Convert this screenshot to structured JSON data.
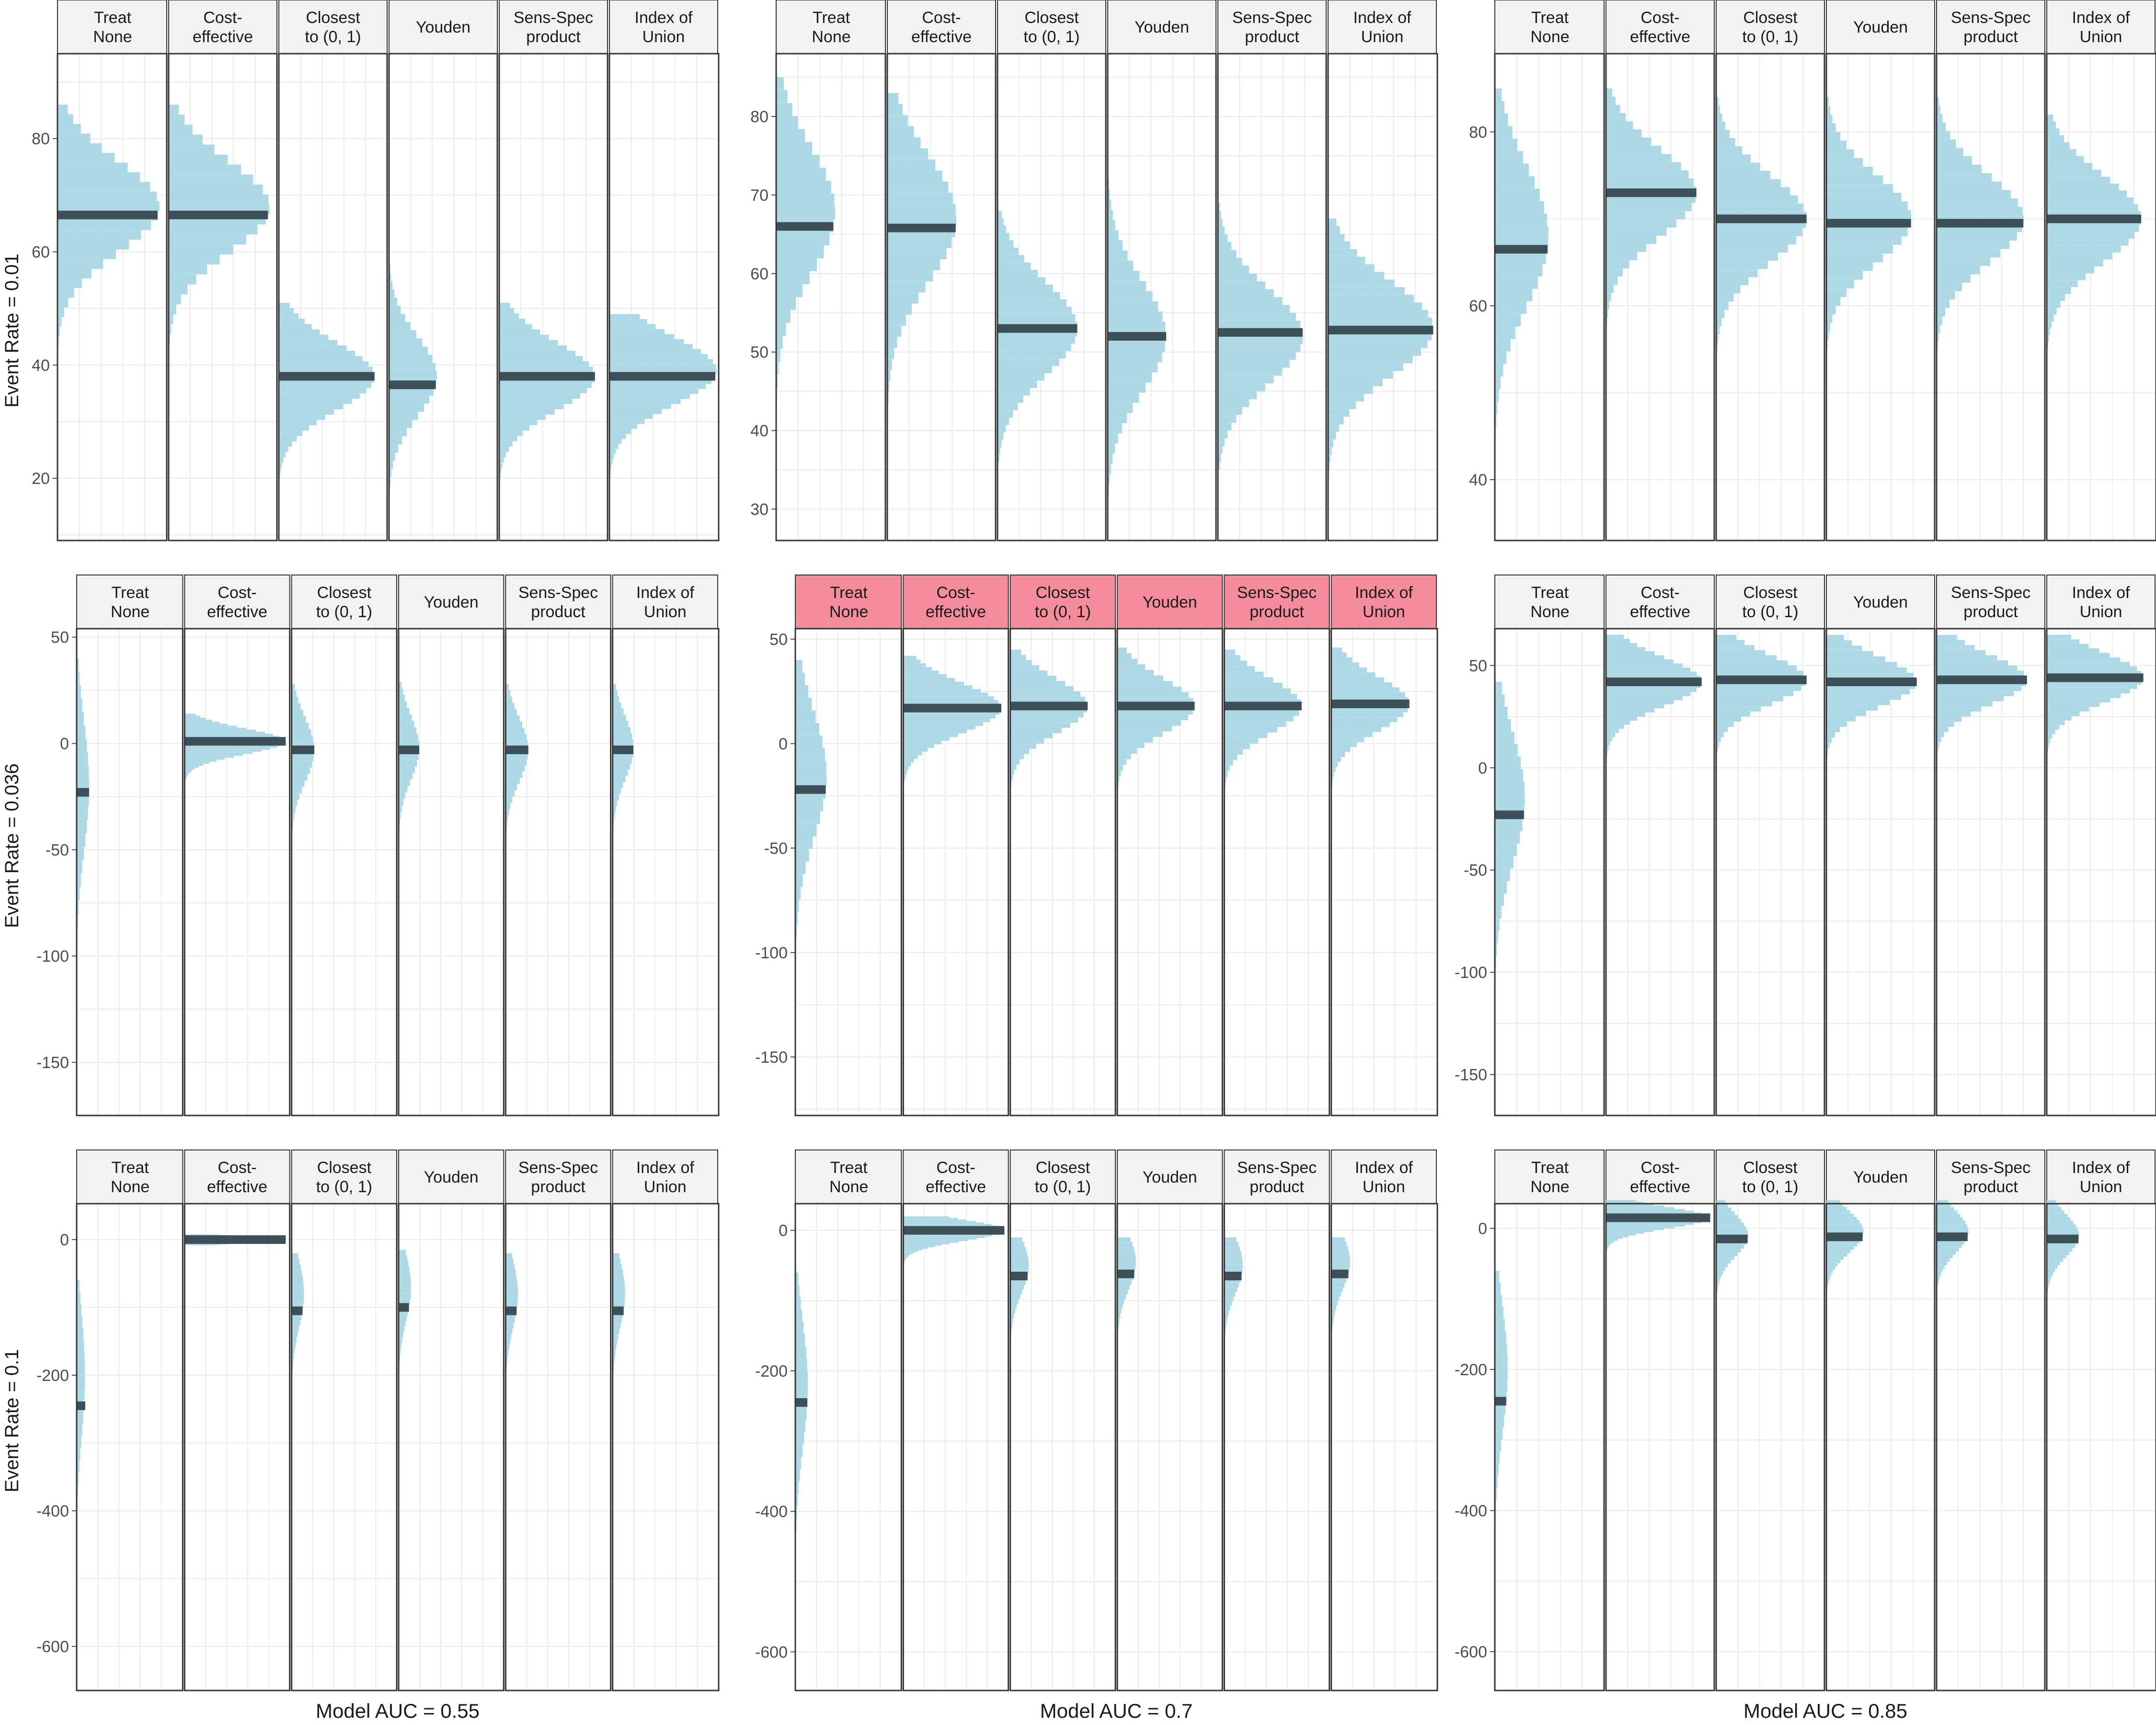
{
  "figure": {
    "strategies": [
      "Treat None",
      "Cost-effective",
      "Closest to (0, 1)",
      "Youden",
      "Sens-Spec product",
      "Index of Union"
    ],
    "strategy_lines": [
      [
        "Treat",
        "None"
      ],
      [
        "Cost-",
        "effective"
      ],
      [
        "Closest",
        "to (0, 1)"
      ],
      [
        "Youden"
      ],
      [
        "Sens-Spec",
        "product"
      ],
      [
        "Index of",
        "Union"
      ]
    ],
    "row_labels": [
      "Event Rate = 0.01",
      "Event Rate = 0.036",
      "Event Rate = 0.1"
    ],
    "col_labels": [
      "Model AUC = 0.55",
      "Model AUC = 0.7",
      "Model AUC = 0.85"
    ],
    "highlighted_panel": {
      "row": 1,
      "col": 1
    },
    "colors": {
      "histogram_fill": "#add8e6",
      "median_bar": "#3d4f57",
      "strip_fill": "#f2f2f2",
      "strip_highlight": "#f48c9c",
      "grid": "#ebebeb",
      "border": "#333333",
      "text": "#1a1a1a",
      "axis_text": "#4d4d4d"
    }
  },
  "chart_data": [
    {
      "type": "histogram",
      "row": 0,
      "col": 0,
      "ylim": [
        9,
        95
      ],
      "yticks": [
        20,
        40,
        60,
        80
      ],
      "series": [
        {
          "name": "Treat None",
          "median": 66.5,
          "range": [
            28,
            86
          ],
          "peak": 68,
          "spread": 8,
          "maxw": 0.95
        },
        {
          "name": "Cost-effective",
          "median": 66.5,
          "range": [
            26,
            86
          ],
          "peak": 68,
          "spread": 8,
          "maxw": 0.95
        },
        {
          "name": "Closest to (0, 1)",
          "median": 38,
          "range": [
            19,
            51
          ],
          "peak": 38,
          "spread": 6,
          "maxw": 0.9
        },
        {
          "name": "Youden",
          "median": 36.5,
          "range": [
            13,
            62
          ],
          "peak": 38,
          "spread": 7,
          "maxw": 0.45
        },
        {
          "name": "Sens-Spec product",
          "median": 38,
          "range": [
            19,
            51
          ],
          "peak": 38,
          "spread": 6,
          "maxw": 0.9
        },
        {
          "name": "Index of Union",
          "median": 38,
          "range": [
            19,
            49
          ],
          "peak": 39,
          "spread": 6,
          "maxw": 1.0
        }
      ]
    },
    {
      "type": "histogram",
      "row": 0,
      "col": 1,
      "ylim": [
        26,
        88
      ],
      "yticks": [
        30,
        40,
        50,
        60,
        70,
        80
      ],
      "series": [
        {
          "name": "Treat None",
          "median": 66,
          "range": [
            29,
            85
          ],
          "peak": 68,
          "spread": 8,
          "maxw": 0.55
        },
        {
          "name": "Cost-effective",
          "median": 65.8,
          "range": [
            35,
            83
          ],
          "peak": 67,
          "spread": 8,
          "maxw": 0.65
        },
        {
          "name": "Closest to (0, 1)",
          "median": 53,
          "range": [
            36,
            68
          ],
          "peak": 53,
          "spread": 6,
          "maxw": 0.75
        },
        {
          "name": "Youden",
          "median": 52,
          "range": [
            28,
            72
          ],
          "peak": 52,
          "spread": 7,
          "maxw": 0.55
        },
        {
          "name": "Sens-Spec product",
          "median": 52.5,
          "range": [
            35,
            69
          ],
          "peak": 52,
          "spread": 6,
          "maxw": 0.8
        },
        {
          "name": "Index of Union",
          "median": 52.8,
          "range": [
            34,
            67
          ],
          "peak": 53,
          "spread": 6,
          "maxw": 0.98
        }
      ]
    },
    {
      "type": "histogram",
      "row": 0,
      "col": 2,
      "ylim": [
        33,
        89
      ],
      "yticks": [
        40,
        60,
        80
      ],
      "series": [
        {
          "name": "Treat None",
          "median": 66.5,
          "range": [
            36,
            85
          ],
          "peak": 68,
          "spread": 8,
          "maxw": 0.5
        },
        {
          "name": "Cost-effective",
          "median": 73,
          "range": [
            53,
            85
          ],
          "peak": 73,
          "spread": 5,
          "maxw": 0.85
        },
        {
          "name": "Closest to (0, 1)",
          "median": 70,
          "range": [
            52,
            84
          ],
          "peak": 70,
          "spread": 5,
          "maxw": 0.85
        },
        {
          "name": "Youden",
          "median": 69.5,
          "range": [
            50,
            84
          ],
          "peak": 70,
          "spread": 5,
          "maxw": 0.8
        },
        {
          "name": "Sens-Spec product",
          "median": 69.5,
          "range": [
            51,
            84
          ],
          "peak": 70,
          "spread": 5,
          "maxw": 0.82
        },
        {
          "name": "Index of Union",
          "median": 70,
          "range": [
            55,
            82
          ],
          "peak": 70,
          "spread": 5,
          "maxw": 0.88
        }
      ]
    },
    {
      "type": "histogram",
      "row": 1,
      "col": 0,
      "ylim": [
        -175,
        54
      ],
      "yticks": [
        -150,
        -100,
        -50,
        0,
        50
      ],
      "series": [
        {
          "name": "Treat None",
          "median": -23,
          "range": [
            -175,
            40
          ],
          "peak": -20,
          "spread": 30,
          "maxw": 0.12
        },
        {
          "name": "Cost-effective",
          "median": 1,
          "range": [
            -18,
            14
          ],
          "peak": 1,
          "spread": 6,
          "maxw": 0.98
        },
        {
          "name": "Closest to (0, 1)",
          "median": -3,
          "range": [
            -75,
            28
          ],
          "peak": -3,
          "spread": 15,
          "maxw": 0.22
        },
        {
          "name": "Youden",
          "median": -3,
          "range": [
            -75,
            29
          ],
          "peak": -2,
          "spread": 15,
          "maxw": 0.2
        },
        {
          "name": "Sens-Spec product",
          "median": -3,
          "range": [
            -72,
            28
          ],
          "peak": -3,
          "spread": 15,
          "maxw": 0.22
        },
        {
          "name": "Index of Union",
          "median": -3,
          "range": [
            -70,
            28
          ],
          "peak": -2,
          "spread": 15,
          "maxw": 0.2
        }
      ]
    },
    {
      "type": "histogram",
      "row": 1,
      "col": 1,
      "ylim": [
        -178,
        55
      ],
      "yticks": [
        -150,
        -100,
        -50,
        0,
        50
      ],
      "series": [
        {
          "name": "Treat None",
          "median": -22,
          "range": [
            -165,
            40
          ],
          "peak": -15,
          "spread": 30,
          "maxw": 0.3
        },
        {
          "name": "Cost-effective",
          "median": 17,
          "range": [
            -18,
            42
          ],
          "peak": 17,
          "spread": 12,
          "maxw": 0.95
        },
        {
          "name": "Closest to (0, 1)",
          "median": 18,
          "range": [
            -40,
            45
          ],
          "peak": 18,
          "spread": 13,
          "maxw": 0.75
        },
        {
          "name": "Youden",
          "median": 18,
          "range": [
            -45,
            46
          ],
          "peak": 18,
          "spread": 13,
          "maxw": 0.75
        },
        {
          "name": "Sens-Spec product",
          "median": 18,
          "range": [
            -45,
            45
          ],
          "peak": 18,
          "spread": 13,
          "maxw": 0.75
        },
        {
          "name": "Index of Union",
          "median": 19,
          "range": [
            -35,
            46
          ],
          "peak": 19,
          "spread": 13,
          "maxw": 0.75
        }
      ]
    },
    {
      "type": "histogram",
      "row": 1,
      "col": 2,
      "ylim": [
        -170,
        68
      ],
      "yticks": [
        -150,
        -100,
        -50,
        0,
        50
      ],
      "series": [
        {
          "name": "Treat None",
          "median": -23,
          "range": [
            -165,
            42
          ],
          "peak": -15,
          "spread": 32,
          "maxw": 0.28
        },
        {
          "name": "Cost-effective",
          "median": 42,
          "range": [
            -3,
            65
          ],
          "peak": 42,
          "spread": 12,
          "maxw": 0.9
        },
        {
          "name": "Closest to (0, 1)",
          "median": 43,
          "range": [
            -20,
            65
          ],
          "peak": 43,
          "spread": 12,
          "maxw": 0.85
        },
        {
          "name": "Youden",
          "median": 42,
          "range": [
            -25,
            65
          ],
          "peak": 42,
          "spread": 12,
          "maxw": 0.85
        },
        {
          "name": "Sens-Spec product",
          "median": 43,
          "range": [
            -20,
            65
          ],
          "peak": 43,
          "spread": 12,
          "maxw": 0.85
        },
        {
          "name": "Index of Union",
          "median": 44,
          "range": [
            -10,
            65
          ],
          "peak": 44,
          "spread": 12,
          "maxw": 0.9
        }
      ]
    },
    {
      "type": "histogram",
      "row": 2,
      "col": 0,
      "ylim": [
        -665,
        53
      ],
      "yticks": [
        -600,
        -400,
        -200,
        0
      ],
      "series": [
        {
          "name": "Treat None",
          "median": -245,
          "range": [
            -660,
            -60
          ],
          "peak": -200,
          "spread": 90,
          "maxw": 0.08
        },
        {
          "name": "Cost-effective",
          "median": 0,
          "range": [
            -8,
            8
          ],
          "peak": 0,
          "spread": 5,
          "maxw": 0.98
        },
        {
          "name": "Closest to (0, 1)",
          "median": -105,
          "range": [
            -300,
            -20
          ],
          "peak": -80,
          "spread": 50,
          "maxw": 0.12
        },
        {
          "name": "Youden",
          "median": -100,
          "range": [
            -290,
            -15
          ],
          "peak": -70,
          "spread": 50,
          "maxw": 0.12
        },
        {
          "name": "Sens-Spec product",
          "median": -105,
          "range": [
            -290,
            -20
          ],
          "peak": -80,
          "spread": 50,
          "maxw": 0.12
        },
        {
          "name": "Index of Union",
          "median": -105,
          "range": [
            -290,
            -20
          ],
          "peak": -80,
          "spread": 50,
          "maxw": 0.12
        }
      ]
    },
    {
      "type": "histogram",
      "row": 2,
      "col": 1,
      "ylim": [
        -655,
        38
      ],
      "yticks": [
        -600,
        -400,
        -200,
        0
      ],
      "series": [
        {
          "name": "Treat None",
          "median": -245,
          "range": [
            -655,
            -60
          ],
          "peak": -220,
          "spread": 90,
          "maxw": 0.12
        },
        {
          "name": "Cost-effective",
          "median": 0,
          "range": [
            -55,
            20
          ],
          "peak": 0,
          "spread": 15,
          "maxw": 0.98
        },
        {
          "name": "Closest to (0, 1)",
          "median": -65,
          "range": [
            -240,
            -10
          ],
          "peak": -50,
          "spread": 40,
          "maxw": 0.18
        },
        {
          "name": "Youden",
          "median": -62,
          "range": [
            -240,
            -10
          ],
          "peak": -45,
          "spread": 40,
          "maxw": 0.18
        },
        {
          "name": "Sens-Spec product",
          "median": -65,
          "range": [
            -230,
            -10
          ],
          "peak": -50,
          "spread": 40,
          "maxw": 0.18
        },
        {
          "name": "Index of Union",
          "median": -62,
          "range": [
            -230,
            -10
          ],
          "peak": -45,
          "spread": 40,
          "maxw": 0.18
        }
      ]
    },
    {
      "type": "histogram",
      "row": 2,
      "col": 2,
      "ylim": [
        -655,
        35
      ],
      "yticks": [
        -600,
        -400,
        -200,
        0
      ],
      "series": [
        {
          "name": "Treat None",
          "median": -245,
          "range": [
            -640,
            -60
          ],
          "peak": -200,
          "spread": 90,
          "maxw": 0.12
        },
        {
          "name": "Cost-effective",
          "median": 15,
          "range": [
            -45,
            40
          ],
          "peak": 15,
          "spread": 15,
          "maxw": 0.98
        },
        {
          "name": "Closest to (0, 1)",
          "median": -15,
          "range": [
            -140,
            40
          ],
          "peak": -10,
          "spread": 30,
          "maxw": 0.3
        },
        {
          "name": "Youden",
          "median": -12,
          "range": [
            -120,
            40
          ],
          "peak": -5,
          "spread": 30,
          "maxw": 0.35
        },
        {
          "name": "Sens-Spec product",
          "median": -12,
          "range": [
            -125,
            40
          ],
          "peak": -5,
          "spread": 30,
          "maxw": 0.3
        },
        {
          "name": "Index of Union",
          "median": -15,
          "range": [
            -125,
            40
          ],
          "peak": -10,
          "spread": 30,
          "maxw": 0.3
        }
      ]
    }
  ]
}
